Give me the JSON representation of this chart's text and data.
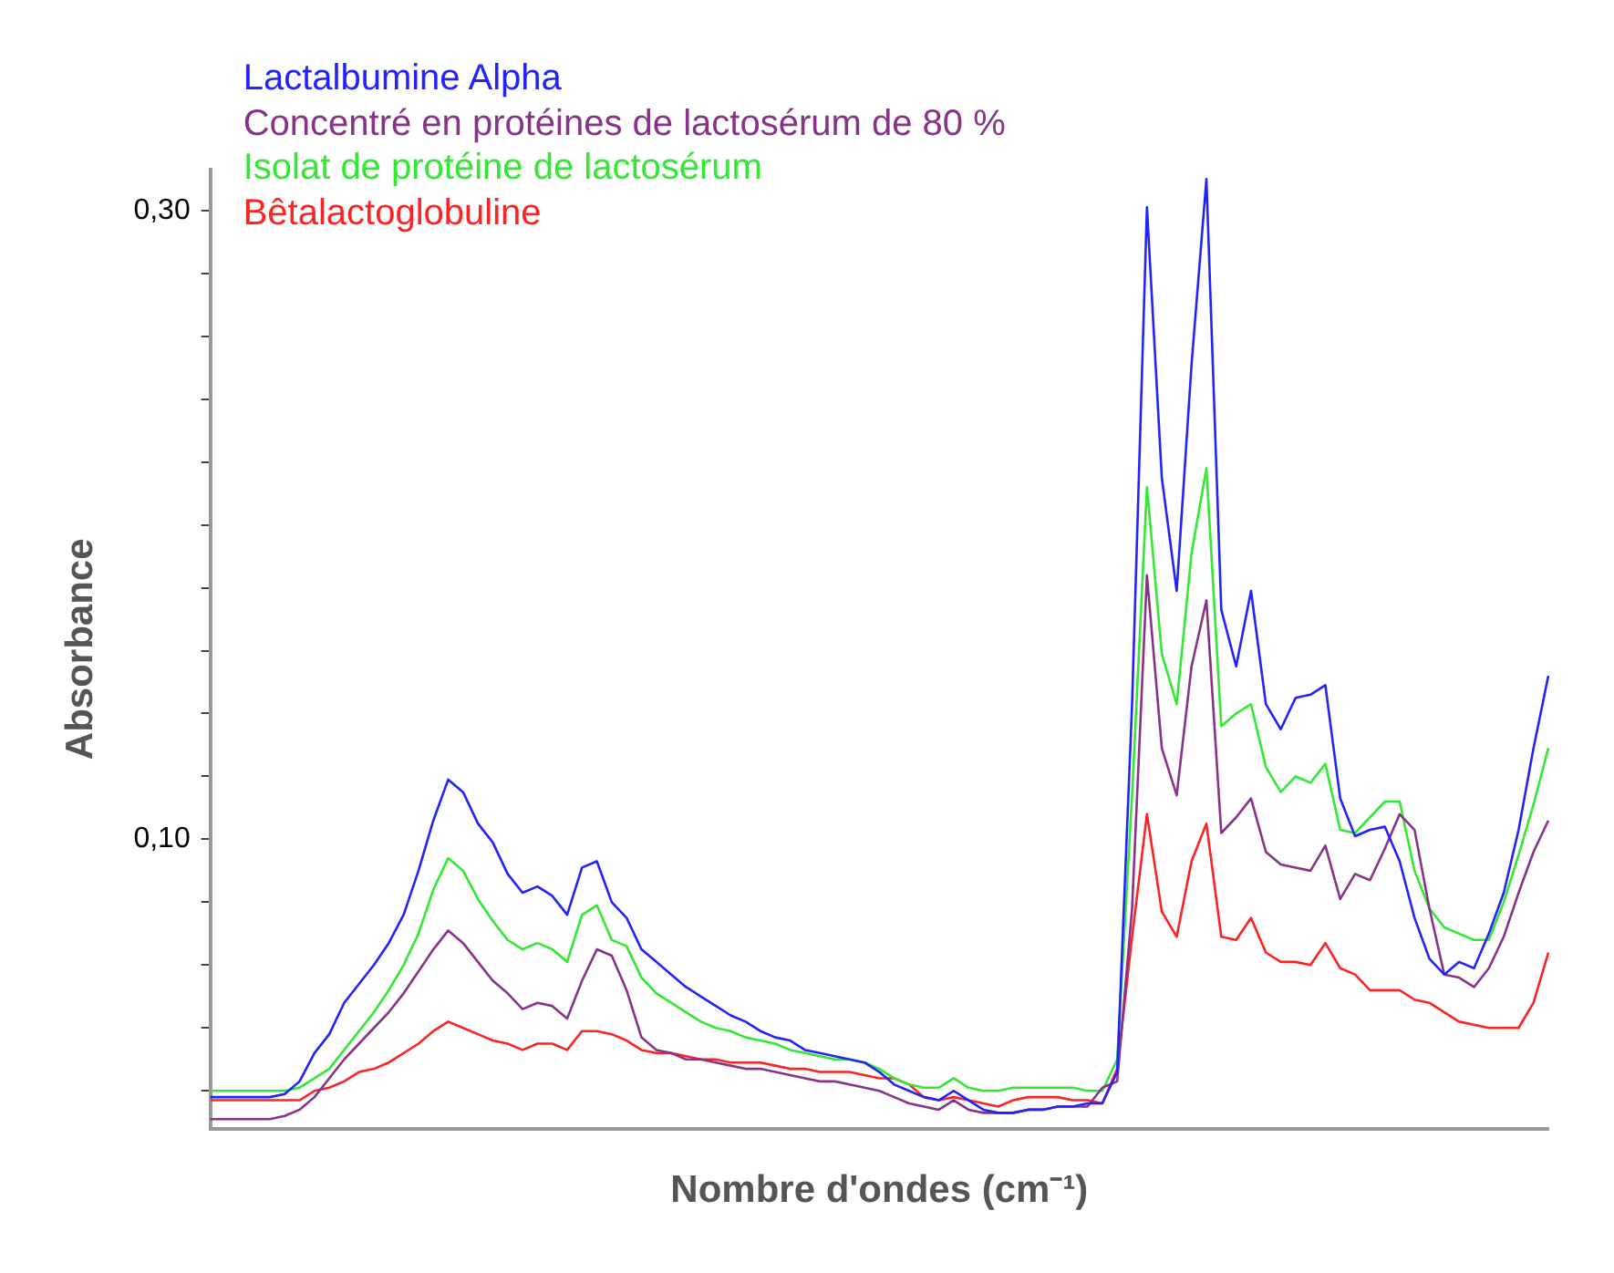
{
  "chart_data": {
    "type": "line",
    "xlabel": "Nombre d'ondes (cm⁻¹)",
    "ylabel": "Absorbance",
    "categories": [
      null,
      null,
      null,
      null,
      null,
      null,
      null,
      null,
      null,
      null,
      null,
      null,
      null,
      null,
      null,
      null,
      null,
      null,
      null,
      null,
      null,
      null,
      null,
      null,
      null,
      null,
      null,
      null,
      null,
      null,
      null,
      null,
      null,
      null,
      null,
      null,
      null,
      null,
      null,
      null,
      null,
      null,
      null,
      null,
      null,
      null,
      null,
      null,
      null,
      null,
      null,
      null,
      null,
      null,
      null,
      null,
      null,
      null,
      null,
      null,
      null,
      null,
      null,
      null,
      null,
      null,
      null,
      null,
      null,
      null,
      null,
      null,
      null,
      null,
      null,
      null,
      null,
      null,
      null,
      null,
      null,
      null,
      null,
      null,
      null,
      null,
      null,
      null,
      null,
      null,
      null
    ],
    "series": [
      {
        "name": "Lactalbumine Alpha",
        "color": "#2222ff",
        "values": [
          0.018,
          0.018,
          0.018,
          0.018,
          0.018,
          0.019,
          0.023,
          0.032,
          0.038,
          0.048,
          0.054,
          0.06,
          0.067,
          0.076,
          0.09,
          0.106,
          0.119,
          0.115,
          0.105,
          0.099,
          0.089,
          0.083,
          0.085,
          0.082,
          0.076,
          0.091,
          0.093,
          0.08,
          0.075,
          0.065,
          0.061,
          0.057,
          0.053,
          0.05,
          0.047,
          0.044,
          0.042,
          0.039,
          0.037,
          0.036,
          0.033,
          0.032,
          0.031,
          0.03,
          0.029,
          0.026,
          0.022,
          0.02,
          0.018,
          0.017,
          0.02,
          0.017,
          0.014,
          0.013,
          0.013,
          0.014,
          0.014,
          0.015,
          0.015,
          0.016,
          0.016,
          0.026,
          0.143,
          0.301,
          0.215,
          0.179,
          0.251,
          0.31,
          0.173,
          0.155,
          0.179,
          0.143,
          0.135,
          0.145,
          0.146,
          0.149,
          0.113,
          0.101,
          0.103,
          0.104,
          0.093,
          0.075,
          0.062,
          0.057,
          0.061,
          0.059,
          0.07,
          0.083,
          0.103,
          0.129,
          0.152
        ]
      },
      {
        "name": "Concentré en protéines de lactosérum de 80 %",
        "color": "#883388",
        "values": [
          0.011,
          0.011,
          0.011,
          0.011,
          0.011,
          0.012,
          0.014,
          0.018,
          0.024,
          0.03,
          0.035,
          0.04,
          0.045,
          0.051,
          0.058,
          0.065,
          0.071,
          0.067,
          0.061,
          0.055,
          0.051,
          0.046,
          0.048,
          0.047,
          0.043,
          0.055,
          0.065,
          0.063,
          0.052,
          0.037,
          0.033,
          0.032,
          0.03,
          0.03,
          0.029,
          0.028,
          0.027,
          0.027,
          0.026,
          0.025,
          0.024,
          0.023,
          0.023,
          0.022,
          0.021,
          0.02,
          0.018,
          0.016,
          0.015,
          0.014,
          0.017,
          0.014,
          0.013,
          0.013,
          0.013,
          0.014,
          0.014,
          0.015,
          0.015,
          0.015,
          0.021,
          0.023,
          0.078,
          0.184,
          0.129,
          0.114,
          0.155,
          0.176,
          0.102,
          0.107,
          0.113,
          0.096,
          0.092,
          0.091,
          0.09,
          0.098,
          0.081,
          0.089,
          0.087,
          0.097,
          0.108,
          0.103,
          0.078,
          0.057,
          0.056,
          0.053,
          0.059,
          0.069,
          0.083,
          0.096,
          0.106
        ]
      },
      {
        "name": "Isolat de protéine de lactosérum",
        "color": "#33e833",
        "values": [
          0.02,
          0.02,
          0.02,
          0.02,
          0.02,
          0.02,
          0.021,
          0.024,
          0.027,
          0.033,
          0.039,
          0.045,
          0.052,
          0.06,
          0.07,
          0.084,
          0.094,
          0.09,
          0.081,
          0.074,
          0.068,
          0.065,
          0.067,
          0.065,
          0.061,
          0.076,
          0.079,
          0.068,
          0.066,
          0.056,
          0.051,
          0.048,
          0.045,
          0.042,
          0.04,
          0.039,
          0.037,
          0.036,
          0.035,
          0.033,
          0.032,
          0.031,
          0.03,
          0.03,
          0.029,
          0.027,
          0.024,
          0.022,
          0.021,
          0.021,
          0.024,
          0.021,
          0.02,
          0.02,
          0.021,
          0.021,
          0.021,
          0.021,
          0.021,
          0.02,
          0.02,
          0.03,
          0.114,
          0.212,
          0.159,
          0.143,
          0.191,
          0.218,
          0.136,
          0.14,
          0.143,
          0.123,
          0.115,
          0.12,
          0.118,
          0.124,
          0.103,
          0.102,
          0.107,
          0.112,
          0.112,
          0.09,
          0.078,
          0.072,
          0.07,
          0.068,
          0.068,
          0.08,
          0.095,
          0.111,
          0.129
        ]
      },
      {
        "name": "Bêtalactoglobuline",
        "color": "#ff2222",
        "values": [
          0.017,
          0.017,
          0.017,
          0.017,
          0.017,
          0.017,
          0.017,
          0.02,
          0.021,
          0.023,
          0.026,
          0.027,
          0.029,
          0.032,
          0.035,
          0.039,
          0.042,
          0.04,
          0.038,
          0.036,
          0.035,
          0.033,
          0.035,
          0.035,
          0.033,
          0.039,
          0.039,
          0.038,
          0.036,
          0.033,
          0.032,
          0.032,
          0.031,
          0.03,
          0.03,
          0.029,
          0.029,
          0.029,
          0.028,
          0.027,
          0.027,
          0.026,
          0.026,
          0.026,
          0.025,
          0.024,
          0.024,
          0.022,
          0.018,
          0.017,
          0.018,
          0.017,
          0.016,
          0.015,
          0.017,
          0.018,
          0.018,
          0.018,
          0.017,
          0.017,
          0.016,
          0.027,
          0.069,
          0.108,
          0.077,
          0.069,
          0.093,
          0.105,
          0.069,
          0.068,
          0.075,
          0.064,
          0.061,
          0.061,
          0.06,
          0.067,
          0.059,
          0.057,
          0.052,
          0.052,
          0.052,
          0.049,
          0.048,
          0.045,
          0.042,
          0.041,
          0.04,
          0.04,
          0.04,
          0.048,
          0.064
        ]
      }
    ],
    "ylim": [
      0.008,
      0.313
    ],
    "yticks": [
      {
        "value": 0.02,
        "label": null
      },
      {
        "value": 0.04,
        "label": null
      },
      {
        "value": 0.06,
        "label": null
      },
      {
        "value": 0.08,
        "label": null
      },
      {
        "value": 0.1,
        "label": "0,10"
      },
      {
        "value": 0.12,
        "label": null
      },
      {
        "value": 0.14,
        "label": null
      },
      {
        "value": 0.16,
        "label": null
      },
      {
        "value": 0.18,
        "label": null
      },
      {
        "value": 0.2,
        "label": null
      },
      {
        "value": 0.22,
        "label": null
      },
      {
        "value": 0.24,
        "label": null
      },
      {
        "value": 0.26,
        "label": null
      },
      {
        "value": 0.28,
        "label": null
      },
      {
        "value": 0.3,
        "label": "0,30"
      }
    ],
    "tick_labels": "y",
    "grid": false,
    "legend": "top left",
    "marker": "none",
    "line_style": "solid"
  }
}
